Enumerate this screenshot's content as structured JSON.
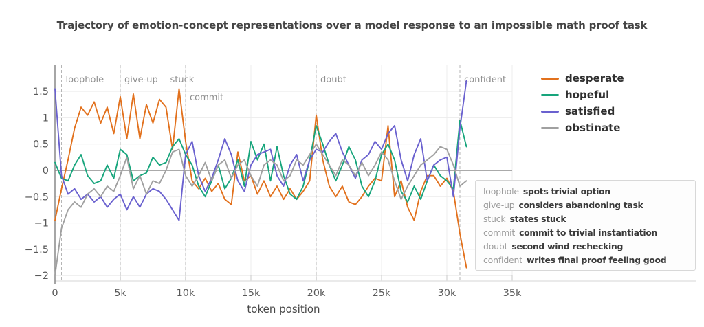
{
  "title": "Trajectory of emotion-concept representations over a model response to an impossible math proof task",
  "legend": {
    "items": [
      {
        "label": "desperate"
      },
      {
        "label": "hopeful"
      },
      {
        "label": "satisfied"
      },
      {
        "label": "obstinate"
      }
    ]
  },
  "annotations": [
    {
      "key": "loophole",
      "token_k": 0.5,
      "desc": "spots trivial option",
      "row": 1
    },
    {
      "key": "give-up",
      "token_k": 5.0,
      "desc": "considers abandoning task",
      "row": 1
    },
    {
      "key": "stuck",
      "token_k": 8.5,
      "desc": "states stuck",
      "row": 1
    },
    {
      "key": "commit",
      "token_k": 10.0,
      "desc": "commit to trivial instantiation",
      "row": 2
    },
    {
      "key": "doubt",
      "token_k": 20.0,
      "desc": "second wind rechecking",
      "row": 1
    },
    {
      "key": "confident",
      "token_k": 31.0,
      "desc": "writes final proof feeling good",
      "row": 1
    }
  ],
  "x_axis": {
    "label": "token position",
    "ticks": [
      {
        "v": 0,
        "label": "0"
      },
      {
        "v": 5,
        "label": "5k"
      },
      {
        "v": 10,
        "label": "10k"
      },
      {
        "v": 15,
        "label": "15k"
      },
      {
        "v": 20,
        "label": "20k"
      },
      {
        "v": 25,
        "label": "25k"
      },
      {
        "v": 30,
        "label": "30k"
      },
      {
        "v": 35,
        "label": "35k"
      }
    ]
  },
  "y_axis": {
    "ticks": [
      {
        "v": 1.5,
        "label": "1.5"
      },
      {
        "v": 1.0,
        "label": "1"
      },
      {
        "v": 0.5,
        "label": "0.5"
      },
      {
        "v": 0.0,
        "label": "0"
      },
      {
        "v": -0.5,
        "label": "−0.5"
      },
      {
        "v": -1.0,
        "label": "−1"
      },
      {
        "v": -1.5,
        "label": "−1.5"
      },
      {
        "v": -2.0,
        "label": "−2"
      }
    ]
  },
  "chart_data": {
    "type": "line",
    "title": "Trajectory of emotion-concept representations over a model response to an impossible math proof task",
    "xlabel": "token position",
    "ylabel": "",
    "x_unit": "tokens (thousands)",
    "x_start_k": 0,
    "x_step_k": 0.5,
    "xlim_k": [
      0,
      35
    ],
    "ylim": [
      -2.1,
      1.8
    ],
    "grid": true,
    "legend_position": "top-right",
    "colors": {
      "zero_line": "#8e8e8e",
      "axis_spine": "#808080",
      "gridline": "#ececec",
      "dashed_marker": "#b5b5b5",
      "baseline": "#dedede",
      "tick_text": "#595959",
      "annotation_text": "#8f8f8f"
    },
    "series": [
      {
        "name": "desperate",
        "color": "#e2711d",
        "values": [
          -0.95,
          -0.35,
          0.2,
          0.8,
          1.2,
          1.05,
          1.3,
          0.9,
          1.2,
          0.7,
          1.4,
          0.6,
          1.45,
          0.6,
          1.25,
          0.9,
          1.35,
          1.2,
          0.4,
          1.55,
          0.55,
          -0.2,
          -0.35,
          -0.15,
          -0.4,
          -0.25,
          -0.55,
          -0.65,
          0.35,
          -0.2,
          -0.1,
          -0.45,
          -0.2,
          -0.5,
          -0.3,
          -0.55,
          -0.35,
          -0.55,
          -0.4,
          -0.2,
          1.05,
          0.2,
          -0.3,
          -0.5,
          -0.3,
          -0.6,
          -0.65,
          -0.5,
          -0.3,
          -0.15,
          -0.2,
          0.85,
          -0.5,
          -0.2,
          -0.7,
          -0.95,
          -0.4,
          -0.1,
          -0.1,
          -0.3,
          -0.15,
          -0.4,
          -1.2,
          -1.85
        ]
      },
      {
        "name": "hopeful",
        "color": "#17a57c",
        "values": [
          0.15,
          -0.15,
          -0.2,
          0.1,
          0.3,
          -0.1,
          -0.25,
          -0.2,
          0.1,
          -0.15,
          0.4,
          0.3,
          -0.2,
          -0.1,
          -0.05,
          0.25,
          0.1,
          0.15,
          0.45,
          0.6,
          0.3,
          0.1,
          -0.3,
          -0.5,
          -0.2,
          0.1,
          -0.35,
          -0.15,
          0.2,
          -0.3,
          0.55,
          0.2,
          0.5,
          -0.2,
          0.45,
          -0.1,
          -0.45,
          -0.55,
          -0.3,
          0.2,
          0.85,
          0.5,
          0.1,
          -0.2,
          0.1,
          0.45,
          0.2,
          -0.3,
          -0.5,
          -0.2,
          0.3,
          0.5,
          0.2,
          -0.4,
          -0.6,
          -0.3,
          -0.55,
          -0.2,
          0.1,
          -0.1,
          -0.2,
          -0.35,
          0.95,
          0.45
        ]
      },
      {
        "name": "satisfied",
        "color": "#6a61cf",
        "values": [
          1.55,
          -0.1,
          -0.45,
          -0.35,
          -0.55,
          -0.45,
          -0.6,
          -0.5,
          -0.7,
          -0.55,
          -0.45,
          -0.75,
          -0.5,
          -0.7,
          -0.45,
          -0.35,
          -0.4,
          -0.55,
          -0.75,
          -0.95,
          0.3,
          0.55,
          -0.1,
          -0.4,
          -0.15,
          0.2,
          0.6,
          0.3,
          -0.2,
          -0.4,
          0.1,
          0.3,
          0.35,
          0.4,
          -0.1,
          -0.3,
          0.1,
          0.3,
          -0.2,
          0.2,
          0.4,
          0.35,
          0.55,
          0.7,
          0.35,
          0.1,
          -0.15,
          0.2,
          0.3,
          0.55,
          0.4,
          0.7,
          0.85,
          0.2,
          -0.2,
          0.3,
          0.6,
          -0.2,
          0.1,
          0.2,
          0.25,
          -0.5,
          0.8,
          1.7
        ]
      },
      {
        "name": "obstinate",
        "color": "#a0a0a0",
        "values": [
          -2.0,
          -1.1,
          -0.75,
          -0.6,
          -0.7,
          -0.45,
          -0.35,
          -0.5,
          -0.3,
          -0.4,
          -0.1,
          0.25,
          -0.35,
          -0.1,
          -0.45,
          -0.2,
          -0.25,
          0.0,
          0.35,
          0.4,
          -0.1,
          -0.3,
          -0.1,
          0.15,
          -0.2,
          0.1,
          0.2,
          -0.15,
          0.1,
          0.2,
          -0.1,
          -0.3,
          0.1,
          0.2,
          0.1,
          -0.2,
          -0.1,
          0.2,
          0.1,
          0.3,
          0.5,
          0.3,
          0.1,
          -0.1,
          0.2,
          0.1,
          -0.1,
          0.15,
          -0.1,
          0.1,
          0.35,
          0.2,
          -0.2,
          -0.55,
          -0.3,
          -0.1,
          0.1,
          0.2,
          0.3,
          0.45,
          0.4,
          0.1,
          -0.3,
          -0.2
        ]
      }
    ]
  }
}
